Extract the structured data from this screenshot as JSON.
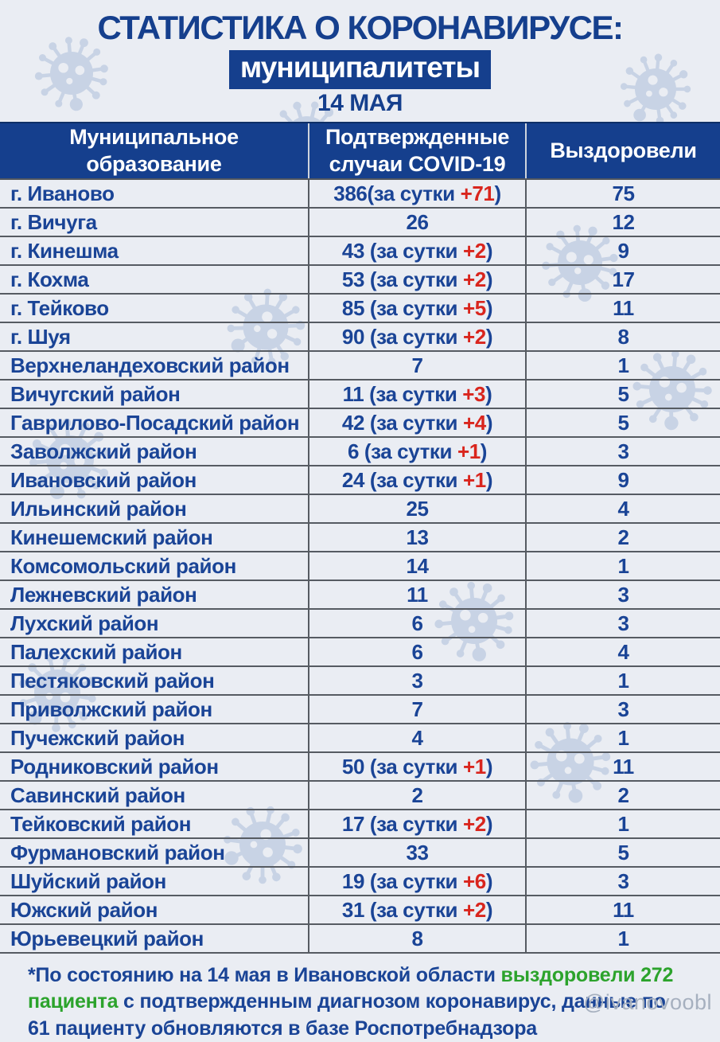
{
  "page": {
    "title": "СТАТИСТИКА О КОРОНАВИРУСЕ:",
    "subtitle_badge": "муниципалитеты",
    "date": "14 МАЯ"
  },
  "colors": {
    "accent_blue": "#153f8d",
    "text_blue": "#1a4496",
    "delta_red": "#d9251d",
    "highlight_green": "#2ca32c",
    "background": "#eaedf3",
    "virus_watermark": "#c8d3e5"
  },
  "table": {
    "columns": [
      "Муниципальное образование",
      "Подтвержденные случаи COVID-19",
      "Выздоровели"
    ],
    "rows": [
      {
        "name": "г. Иваново",
        "cases_pre": "386(за сутки ",
        "cases_delta": "+71",
        "cases_post": ")",
        "recovered": "75"
      },
      {
        "name": "г. Вичуга",
        "cases_pre": "26",
        "cases_delta": "",
        "cases_post": "",
        "recovered": "12"
      },
      {
        "name": "г. Кинешма",
        "cases_pre": "43 (за сутки ",
        "cases_delta": "+2",
        "cases_post": ")",
        "recovered": "9"
      },
      {
        "name": "г. Кохма",
        "cases_pre": "53 (за сутки ",
        "cases_delta": "+2",
        "cases_post": ")",
        "recovered": "17"
      },
      {
        "name": "г. Тейково",
        "cases_pre": "85 (за сутки ",
        "cases_delta": "+5",
        "cases_post": ")",
        "recovered": "11"
      },
      {
        "name": "г. Шуя",
        "cases_pre": "90 (за сутки ",
        "cases_delta": "+2",
        "cases_post": ")",
        "recovered": "8"
      },
      {
        "name": "Верхнеландеховский район",
        "cases_pre": "7",
        "cases_delta": "",
        "cases_post": "",
        "recovered": "1"
      },
      {
        "name": "Вичугский район",
        "cases_pre": "11 (за сутки ",
        "cases_delta": "+3",
        "cases_post": ")",
        "recovered": "5"
      },
      {
        "name": "Гаврилово-Посадский район",
        "cases_pre": "42 (за сутки ",
        "cases_delta": "+4",
        "cases_post": ")",
        "recovered": "5"
      },
      {
        "name": "Заволжский район",
        "cases_pre": "6 (за сутки ",
        "cases_delta": "+1",
        "cases_post": ")",
        "recovered": "3"
      },
      {
        "name": "Ивановский район",
        "cases_pre": "24 (за сутки ",
        "cases_delta": "+1",
        "cases_post": ")",
        "recovered": "9"
      },
      {
        "name": "Ильинский район",
        "cases_pre": "25",
        "cases_delta": "",
        "cases_post": "",
        "recovered": "4"
      },
      {
        "name": "Кинешемский район",
        "cases_pre": "13",
        "cases_delta": "",
        "cases_post": "",
        "recovered": "2"
      },
      {
        "name": "Комсомольский район",
        "cases_pre": "14",
        "cases_delta": "",
        "cases_post": "",
        "recovered": "1"
      },
      {
        "name": "Лежневский район",
        "cases_pre": "11",
        "cases_delta": "",
        "cases_post": "",
        "recovered": "3"
      },
      {
        "name": "Лухский район",
        "cases_pre": "6",
        "cases_delta": "",
        "cases_post": "",
        "recovered": "3"
      },
      {
        "name": "Палехский район",
        "cases_pre": "6",
        "cases_delta": "",
        "cases_post": "",
        "recovered": "4"
      },
      {
        "name": "Пестяковский район",
        "cases_pre": "3",
        "cases_delta": "",
        "cases_post": "",
        "recovered": "1"
      },
      {
        "name": "Приволжский район",
        "cases_pre": "7",
        "cases_delta": "",
        "cases_post": "",
        "recovered": "3"
      },
      {
        "name": "Пучежский район",
        "cases_pre": "4",
        "cases_delta": "",
        "cases_post": "",
        "recovered": "1"
      },
      {
        "name": "Родниковский район",
        "cases_pre": "50 (за сутки ",
        "cases_delta": "+1",
        "cases_post": ")",
        "recovered": "11"
      },
      {
        "name": "Савинский район",
        "cases_pre": "2",
        "cases_delta": "",
        "cases_post": "",
        "recovered": "2"
      },
      {
        "name": "Тейковский район",
        "cases_pre": "17 (за сутки ",
        "cases_delta": "+2",
        "cases_post": ")",
        "recovered": "1"
      },
      {
        "name": "Фурмановский район",
        "cases_pre": "33",
        "cases_delta": "",
        "cases_post": "",
        "recovered": "5"
      },
      {
        "name": "Шуйский район",
        "cases_pre": "19 (за сутки ",
        "cases_delta": "+6",
        "cases_post": ")",
        "recovered": "3"
      },
      {
        "name": "Южский район",
        "cases_pre": "31 (за сутки ",
        "cases_delta": "+2",
        "cases_post": ")",
        "recovered": "11"
      },
      {
        "name": "Юрьевецкий район",
        "cases_pre": "8",
        "cases_delta": "",
        "cases_post": "",
        "recovered": "1"
      }
    ]
  },
  "footnote": {
    "segments": [
      {
        "text": "*По состоянию на 14 мая в Ивановской области ",
        "color": "blue"
      },
      {
        "text": "выздоровели 272 пациента",
        "color": "green"
      },
      {
        "text": " с подтвержденным диагнозом коронавирус, данные по 61 пациенту обновляются в базе Роспотребнадзора",
        "color": "blue"
      }
    ]
  },
  "watermark": "@ivanovoobl",
  "chart_data": {
    "type": "table",
    "title": "СТАТИСТИКА О КОРОНАВИРУСЕ: муниципалитеты — 14 МАЯ",
    "columns": [
      "Муниципальное образование",
      "Подтвержденные случаи COVID-19 (всего)",
      "За сутки",
      "Выздоровели"
    ],
    "rows": [
      [
        "г. Иваново",
        386,
        71,
        75
      ],
      [
        "г. Вичуга",
        26,
        null,
        12
      ],
      [
        "г. Кинешма",
        43,
        2,
        9
      ],
      [
        "г. Кохма",
        53,
        2,
        17
      ],
      [
        "г. Тейково",
        85,
        5,
        11
      ],
      [
        "г. Шуя",
        90,
        2,
        8
      ],
      [
        "Верхнеландеховский район",
        7,
        null,
        1
      ],
      [
        "Вичугский район",
        11,
        3,
        5
      ],
      [
        "Гаврилово-Посадский район",
        42,
        4,
        5
      ],
      [
        "Заволжский район",
        6,
        1,
        3
      ],
      [
        "Ивановский район",
        24,
        1,
        9
      ],
      [
        "Ильинский район",
        25,
        null,
        4
      ],
      [
        "Кинешемский район",
        13,
        null,
        2
      ],
      [
        "Комсомольский район",
        14,
        null,
        1
      ],
      [
        "Лежневский район",
        11,
        null,
        3
      ],
      [
        "Лухский район",
        6,
        null,
        3
      ],
      [
        "Палехский район",
        6,
        null,
        4
      ],
      [
        "Пестяковский район",
        3,
        null,
        1
      ],
      [
        "Приволжский район",
        7,
        null,
        3
      ],
      [
        "Пучежский район",
        4,
        null,
        1
      ],
      [
        "Родниковский район",
        50,
        1,
        11
      ],
      [
        "Савинский район",
        2,
        null,
        2
      ],
      [
        "Тейковский район",
        17,
        2,
        1
      ],
      [
        "Фурмановский район",
        33,
        null,
        5
      ],
      [
        "Шуйский район",
        19,
        6,
        3
      ],
      [
        "Южский район",
        31,
        2,
        11
      ],
      [
        "Юрьевецкий район",
        8,
        null,
        1
      ]
    ],
    "region_total_recovered_note": {
      "recovered_total": 272,
      "pending_in_rospotrebnadzor": 61,
      "as_of": "14 мая"
    }
  }
}
